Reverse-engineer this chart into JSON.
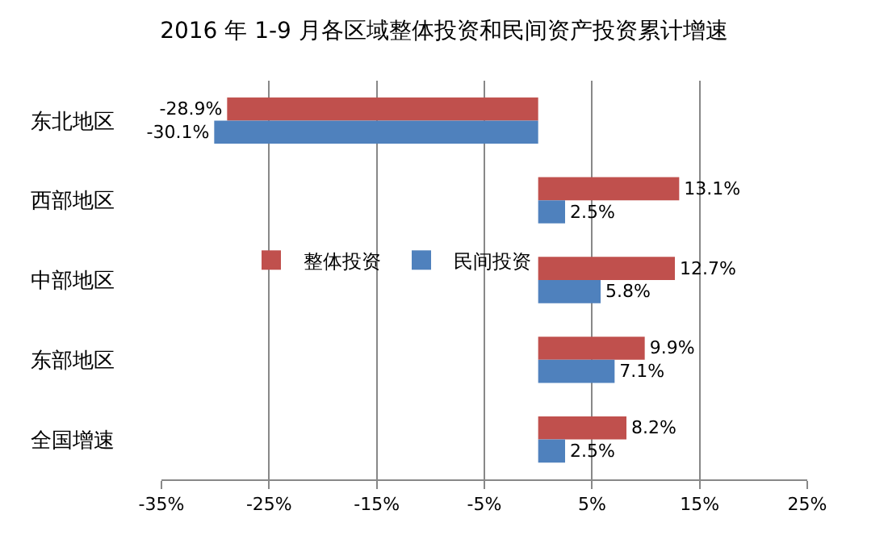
{
  "chart_data": {
    "type": "bar",
    "orientation": "horizontal",
    "title": "2016 年 1-9 月各区域整体投资和民间资产投资累计增速",
    "categories": [
      "东北地区",
      "西部地区",
      "中部地区",
      "东部地区",
      "全国增速"
    ],
    "series": [
      {
        "name": "整体投资",
        "color": "#c0504d",
        "values": [
          -28.9,
          13.1,
          12.7,
          9.9,
          8.2
        ],
        "value_labels": [
          "-28.9%",
          "13.1%",
          "12.7%",
          "9.9%",
          "8.2%"
        ]
      },
      {
        "name": "民间投资",
        "color": "#4f81bd",
        "values": [
          -30.1,
          2.5,
          5.8,
          7.1,
          2.5
        ],
        "value_labels": [
          "-30.1%",
          "2.5%",
          "5.8%",
          "7.1%",
          "2.5%"
        ]
      }
    ],
    "xlim": [
      -35,
      25
    ],
    "xticks": [
      {
        "value": -35,
        "label": "-35%"
      },
      {
        "value": -25,
        "label": "-25%"
      },
      {
        "value": -15,
        "label": "-15%"
      },
      {
        "value": -5,
        "label": "-5%"
      },
      {
        "value": 5,
        "label": "5%"
      },
      {
        "value": 15,
        "label": "15%"
      },
      {
        "value": 25,
        "label": "25%"
      }
    ],
    "grid": "x",
    "legend": "left"
  }
}
